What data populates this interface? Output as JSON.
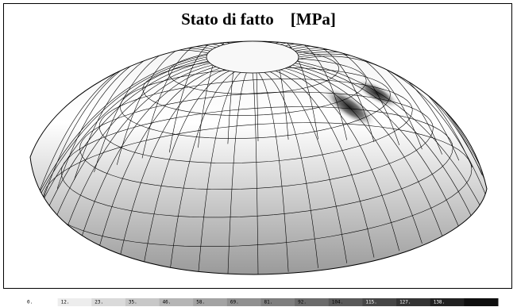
{
  "title": "Stato di fatto    [MPa]",
  "legend": {
    "labels": [
      "0.",
      "12.",
      "23.",
      "35.",
      "46.",
      "58.",
      "69.",
      "81.",
      "92.",
      "104.",
      "115.",
      "127.",
      "138."
    ]
  }
}
